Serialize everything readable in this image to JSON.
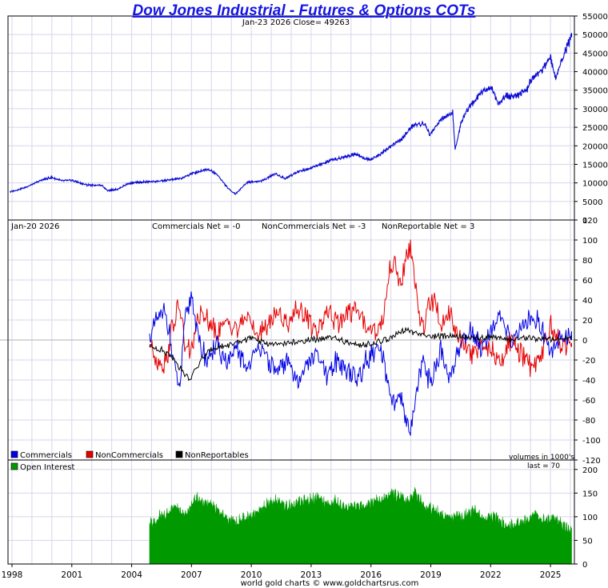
{
  "title": "Dow Jones Industrial - Futures & Options COTs",
  "price_panel": {
    "subtitle": "Jan-23  2026   Close= 49263",
    "y_ticks": [
      "55000",
      "50000",
      "45000",
      "40000",
      "35000",
      "30000",
      "25000",
      "20000",
      "15000",
      "10000",
      "5000",
      "0"
    ]
  },
  "cot_panel": {
    "date": "Jan-20  2026",
    "commercials_net": "Commercials Net = -0",
    "noncommercials_net": "NonCommercials Net = -3",
    "nonreportable_net": "NonReportable Net = 3",
    "y_ticks": [
      "120",
      "100",
      "80",
      "60",
      "40",
      "20",
      "0",
      "-20",
      "-40",
      "-60",
      "-80",
      "-100",
      "-120"
    ],
    "legend": [
      "Commercials",
      "NonCommercials",
      "NonReportables"
    ]
  },
  "oi_panel": {
    "legend": "Open Interest",
    "volumes_note": "volumes in 1000's",
    "last_note": "last = 70",
    "y_ticks": [
      "200",
      "150",
      "100",
      "50",
      "0"
    ]
  },
  "x_ticks": [
    "1998",
    "2001",
    "2004",
    "2007",
    "2010",
    "2013",
    "2016",
    "2019",
    "2022",
    "2025"
  ],
  "footer": "world gold charts © www.goldchartsrus.com",
  "colors": {
    "price": "#0a0ad2",
    "commercials": "#0000e6",
    "noncommercials": "#e60000",
    "nonreportables": "#000000",
    "open_interest": "#009900",
    "grid": "#d6d6ec",
    "title": "#1414e6"
  },
  "chart_data": [
    {
      "type": "line",
      "title": "Dow Jones Industrial - Futures & Options COTs",
      "series": [
        {
          "values_note": "Dow Jones Industrial Average close",
          "x": [
            1997.9,
            1998.5,
            1999.0,
            1999.5,
            2000.0,
            2000.5,
            2001.0,
            2001.7,
            2002.5,
            2002.8,
            2003.3,
            2003.8,
            2004.5,
            2005.5,
            2006.5,
            2007.0,
            2007.8,
            2008.3,
            2008.8,
            2009.2,
            2009.8,
            2010.5,
            2011.2,
            2011.7,
            2012.3,
            2013.0,
            2013.5,
            2014.0,
            2014.7,
            2015.3,
            2015.7,
            2016.0,
            2016.5,
            2017.0,
            2017.5,
            2018.1,
            2018.7,
            2018.95,
            2019.5,
            2020.1,
            2020.22,
            2020.5,
            2020.9,
            2021.5,
            2022.0,
            2022.4,
            2022.8,
            2023.3,
            2023.8,
            2024.0,
            2024.5,
            2025.0,
            2025.28,
            2025.6,
            2026.06
          ],
          "values": [
            7600,
            8500,
            9500,
            10800,
            11500,
            10500,
            10700,
            9500,
            9300,
            8000,
            8300,
            9800,
            10200,
            10500,
            11200,
            12500,
            13800,
            12200,
            8700,
            7000,
            10200,
            10500,
            12500,
            11200,
            13000,
            14000,
            15000,
            16000,
            17000,
            18000,
            16500,
            16200,
            18000,
            20000,
            21500,
            25500,
            26000,
            23000,
            27000,
            29000,
            19000,
            26000,
            30000,
            34500,
            36000,
            31500,
            33500,
            33500,
            35000,
            37500,
            40000,
            44000,
            38000,
            44000,
            49263
          ]
        }
      ],
      "ylim": [
        0,
        55000
      ],
      "xlim": [
        1997.8,
        2026.2
      ],
      "grid": true
    },
    {
      "type": "line",
      "series": [
        {
          "name": "Commercials",
          "x": [
            2004.9,
            2005.3,
            2005.7,
            2006.0,
            2006.4,
            2006.7,
            2007.0,
            2007.4,
            2007.8,
            2008.3,
            2008.8,
            2009.3,
            2009.8,
            2010.3,
            2010.8,
            2011.3,
            2011.8,
            2012.3,
            2012.8,
            2013.3,
            2013.8,
            2014.3,
            2014.8,
            2015.3,
            2015.8,
            2016.3,
            2016.6,
            2016.9,
            2017.2,
            2017.5,
            2017.8,
            2018.0,
            2018.3,
            2018.6,
            2018.9,
            2019.2,
            2019.5,
            2019.9,
            2020.2,
            2020.6,
            2021.0,
            2021.5,
            2022.0,
            2022.5,
            2023.0,
            2023.5,
            2024.0,
            2024.5,
            2025.0,
            2025.5,
            2026.06
          ],
          "values": [
            0,
            20,
            30,
            -10,
            -55,
            25,
            45,
            -5,
            -20,
            -5,
            -25,
            -10,
            -30,
            -5,
            -20,
            -35,
            -20,
            -40,
            -25,
            -15,
            -40,
            -20,
            -30,
            -40,
            -20,
            -10,
            -20,
            -50,
            -70,
            -60,
            -85,
            -90,
            -50,
            -20,
            -40,
            -30,
            -10,
            -40,
            -20,
            0,
            10,
            -5,
            10,
            20,
            0,
            10,
            25,
            15,
            -10,
            5,
            0
          ]
        },
        {
          "name": "NonCommercials",
          "x": [
            2004.9,
            2005.3,
            2005.7,
            2006.0,
            2006.4,
            2006.7,
            2007.0,
            2007.4,
            2007.8,
            2008.3,
            2008.8,
            2009.3,
            2009.8,
            2010.3,
            2010.8,
            2011.3,
            2011.8,
            2012.3,
            2012.8,
            2013.3,
            2013.8,
            2014.3,
            2014.8,
            2015.3,
            2015.8,
            2016.3,
            2016.6,
            2016.9,
            2017.2,
            2017.5,
            2017.8,
            2018.0,
            2018.3,
            2018.6,
            2018.9,
            2019.2,
            2019.5,
            2019.9,
            2020.2,
            2020.6,
            2021.0,
            2021.5,
            2022.0,
            2022.5,
            2023.0,
            2023.5,
            2024.0,
            2024.5,
            2025.0,
            2025.5,
            2026.06
          ],
          "values": [
            0,
            -20,
            -25,
            10,
            35,
            -10,
            -10,
            25,
            20,
            5,
            20,
            10,
            25,
            5,
            15,
            30,
            15,
            35,
            20,
            10,
            30,
            15,
            25,
            30,
            15,
            10,
            20,
            70,
            80,
            50,
            85,
            90,
            40,
            10,
            35,
            40,
            15,
            30,
            10,
            -5,
            -15,
            -5,
            -10,
            -25,
            0,
            -15,
            -25,
            -15,
            15,
            -5,
            -3
          ]
        },
        {
          "name": "NonReportables",
          "x": [
            2004.9,
            2005.5,
            2006.0,
            2006.5,
            2006.9,
            2007.5,
            2008.0,
            2009.0,
            2010.0,
            2011.0,
            2012.0,
            2013.0,
            2014.0,
            2015.0,
            2016.0,
            2017.0,
            2017.8,
            2018.5,
            2019.0,
            2020.0,
            2021.0,
            2022.0,
            2023.0,
            2024.0,
            2025.0,
            2026.06
          ],
          "values": [
            -5,
            -10,
            -15,
            -30,
            -40,
            -20,
            -8,
            -5,
            2,
            -5,
            -3,
            0,
            2,
            -3,
            -5,
            2,
            10,
            5,
            3,
            5,
            2,
            3,
            0,
            2,
            1,
            3
          ]
        }
      ],
      "ylim": [
        -120,
        120
      ],
      "xlim": [
        1997.8,
        2026.2
      ],
      "grid": true,
      "legend": "bottom-left"
    },
    {
      "type": "area",
      "series": [
        {
          "name": "Open Interest",
          "x": [
            2004.9,
            2005.3,
            2005.8,
            2006.3,
            2006.8,
            2007.2,
            2007.7,
            2008.2,
            2008.7,
            2009.2,
            2009.7,
            2010.2,
            2010.7,
            2011.2,
            2011.7,
            2012.2,
            2012.7,
            2013.2,
            2013.7,
            2014.2,
            2014.7,
            2015.2,
            2015.7,
            2016.2,
            2016.7,
            2017.2,
            2017.7,
            2018.2,
            2018.7,
            2019.2,
            2019.7,
            2020.2,
            2020.7,
            2021.2,
            2021.7,
            2022.2,
            2022.7,
            2023.2,
            2023.7,
            2024.2,
            2024.7,
            2025.2,
            2025.7,
            2026.06
          ],
          "values": [
            80,
            95,
            110,
            115,
            105,
            140,
            125,
            115,
            100,
            90,
            100,
            105,
            120,
            135,
            120,
            125,
            135,
            140,
            125,
            130,
            120,
            125,
            120,
            130,
            140,
            145,
            135,
            150,
            120,
            110,
            100,
            95,
            100,
            110,
            95,
            100,
            85,
            80,
            90,
            100,
            95,
            90,
            80,
            70
          ]
        }
      ],
      "ylim": [
        0,
        220
      ],
      "xlim": [
        1997.8,
        2026.2
      ],
      "grid": true
    }
  ]
}
